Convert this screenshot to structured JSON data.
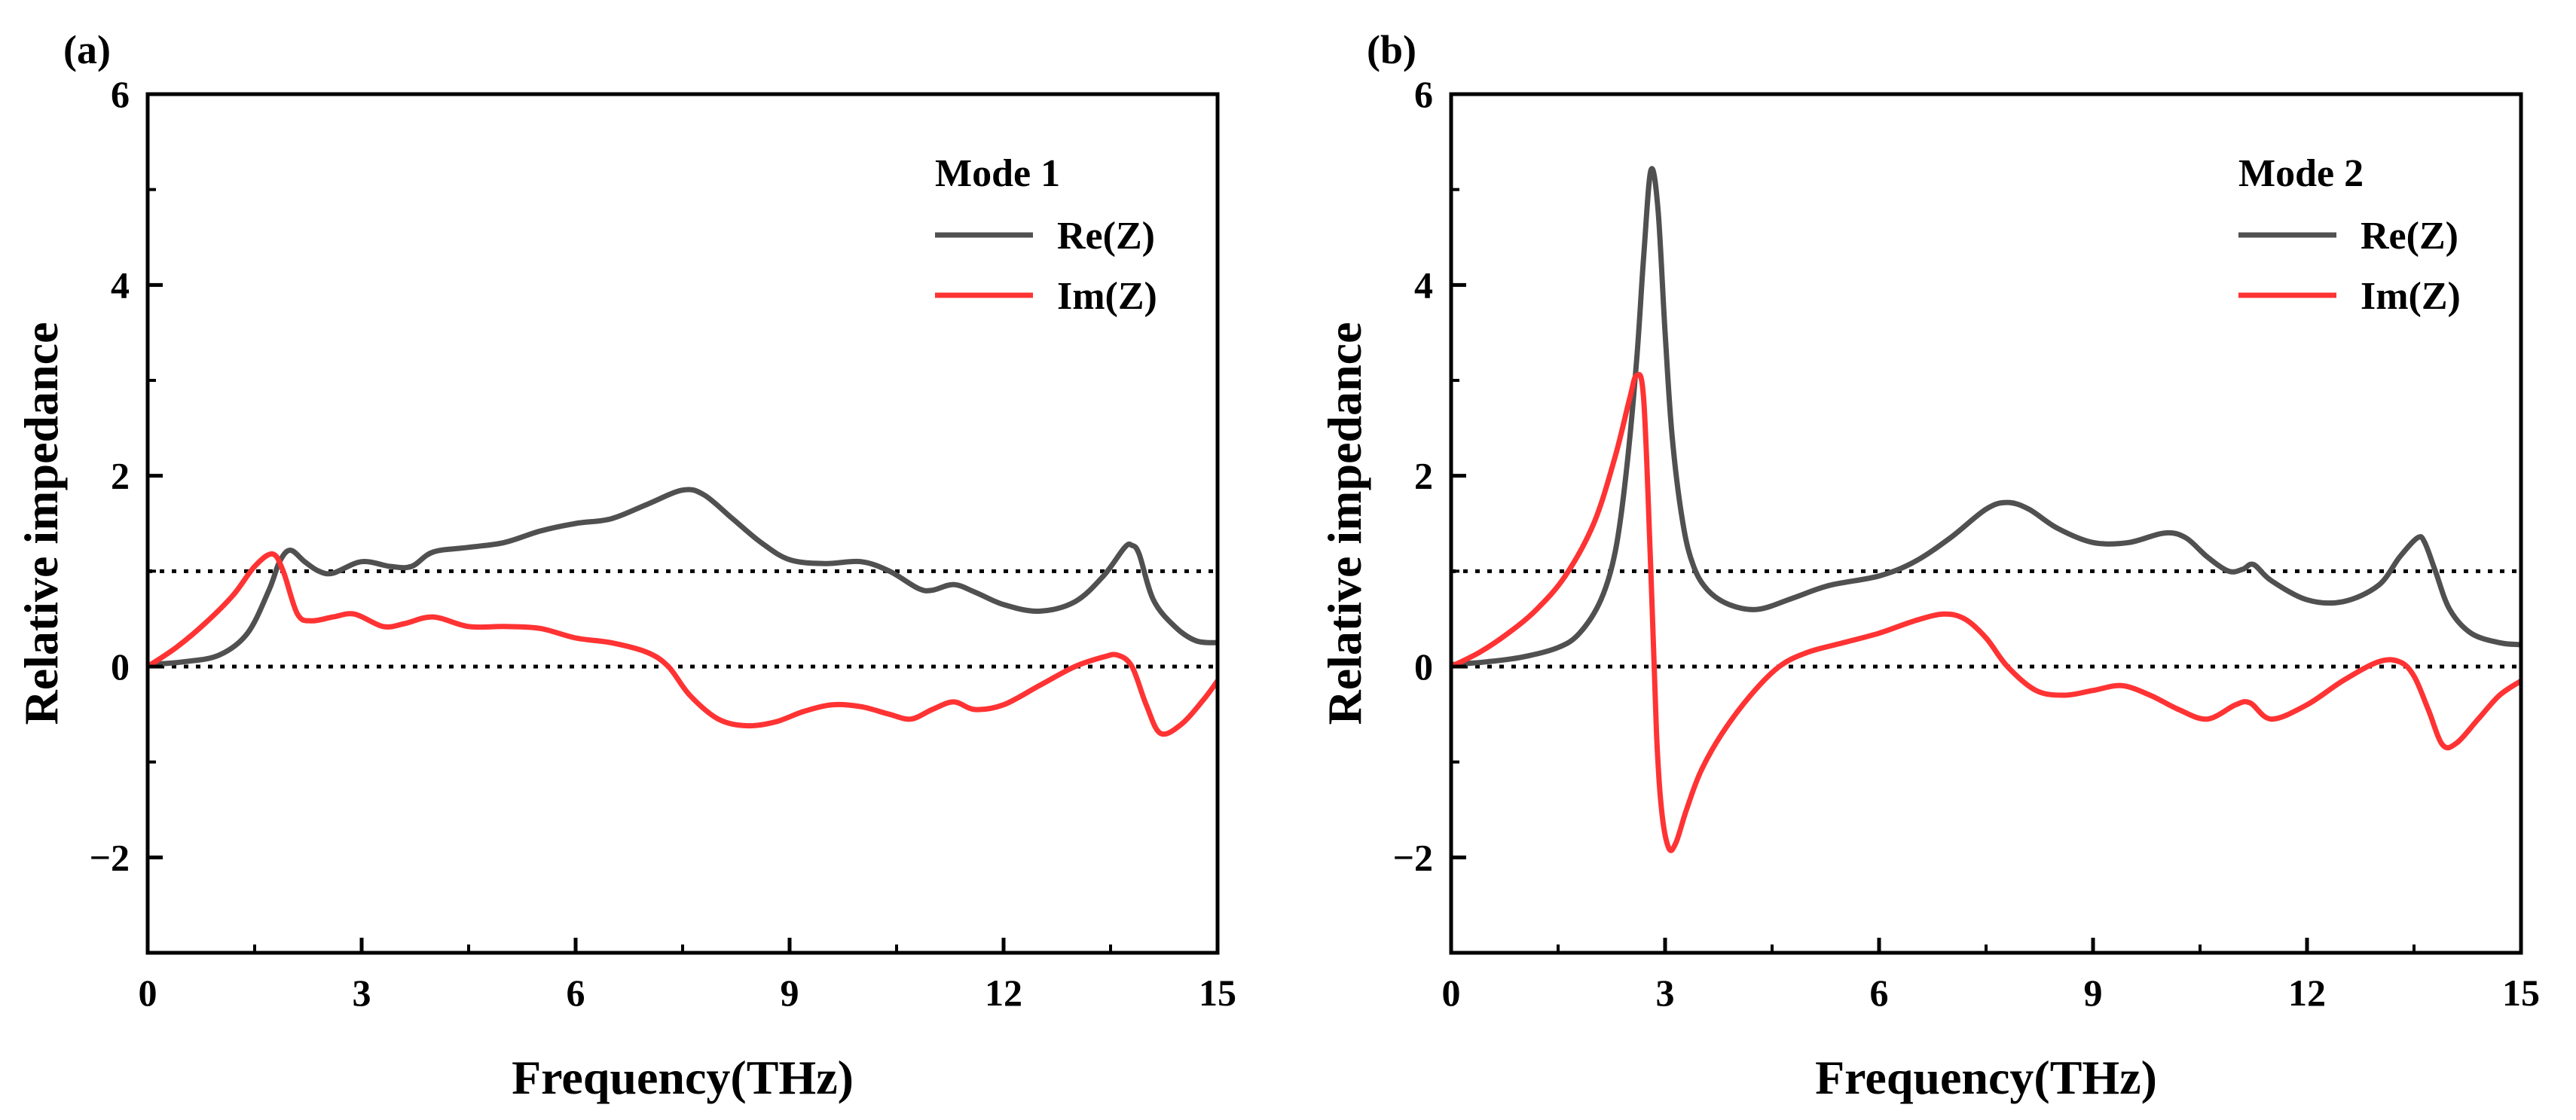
{
  "chart_data": [
    {
      "type": "line",
      "panel_label": "(a)",
      "xlabel": "Frequency(THz)",
      "ylabel": "Relative impedance",
      "xlim": [
        0,
        15
      ],
      "ylim": [
        -3,
        6
      ],
      "xticks": [
        0,
        3,
        6,
        9,
        12,
        15
      ],
      "xtick_labels": [
        "0",
        "3",
        "6",
        "9",
        "12",
        "15"
      ],
      "yticks": [
        -2,
        0,
        2,
        4,
        6
      ],
      "ytick_labels": [
        "−2",
        "0",
        "2",
        "4",
        "6"
      ],
      "reference_lines": [
        0,
        1
      ],
      "legend": {
        "title": "Mode 1",
        "position": "top-right",
        "entries": [
          "Re(Z)",
          "Im(Z)"
        ]
      },
      "series": [
        {
          "name": "Re(Z)",
          "color": "#505050",
          "x": [
            0,
            0.5,
            1.0,
            1.4,
            1.7,
            1.85,
            2.0,
            2.2,
            2.4,
            2.6,
            3.0,
            3.4,
            3.7,
            4.0,
            4.5,
            5.0,
            5.5,
            6.0,
            6.5,
            7.0,
            7.5,
            7.8,
            8.2,
            8.6,
            9.0,
            9.5,
            10.0,
            10.4,
            10.8,
            11.0,
            11.3,
            11.6,
            12.0,
            12.5,
            13.0,
            13.4,
            13.7,
            13.8,
            13.9,
            14.1,
            14.4,
            14.7,
            15.0
          ],
          "y": [
            0.02,
            0.05,
            0.12,
            0.35,
            0.8,
            1.1,
            1.22,
            1.1,
            1.0,
            0.98,
            1.1,
            1.05,
            1.05,
            1.2,
            1.25,
            1.3,
            1.42,
            1.5,
            1.55,
            1.7,
            1.85,
            1.8,
            1.55,
            1.3,
            1.12,
            1.08,
            1.1,
            1.0,
            0.82,
            0.8,
            0.86,
            0.78,
            0.65,
            0.58,
            0.68,
            0.95,
            1.25,
            1.27,
            1.18,
            0.7,
            0.42,
            0.27,
            0.25
          ]
        },
        {
          "name": "Im(Z)",
          "color": "#ff3333",
          "x": [
            0,
            0.4,
            0.8,
            1.2,
            1.5,
            1.75,
            1.9,
            2.1,
            2.3,
            2.6,
            2.9,
            3.3,
            3.6,
            4.0,
            4.5,
            5.0,
            5.5,
            6.0,
            6.5,
            7.0,
            7.3,
            7.6,
            8.0,
            8.4,
            8.8,
            9.2,
            9.6,
            10.0,
            10.4,
            10.7,
            11.0,
            11.3,
            11.6,
            12.0,
            12.5,
            13.0,
            13.4,
            13.6,
            13.8,
            14.0,
            14.2,
            14.5,
            14.8,
            15.0
          ],
          "y": [
            0.0,
            0.2,
            0.45,
            0.75,
            1.05,
            1.18,
            1.0,
            0.55,
            0.48,
            0.52,
            0.55,
            0.42,
            0.45,
            0.52,
            0.42,
            0.42,
            0.4,
            0.3,
            0.25,
            0.15,
            0.0,
            -0.3,
            -0.55,
            -0.62,
            -0.58,
            -0.47,
            -0.4,
            -0.42,
            -0.5,
            -0.55,
            -0.45,
            -0.37,
            -0.45,
            -0.4,
            -0.2,
            0.0,
            0.1,
            0.12,
            0.0,
            -0.4,
            -0.7,
            -0.6,
            -0.35,
            -0.15
          ]
        }
      ]
    },
    {
      "type": "line",
      "panel_label": "(b)",
      "xlabel": "Frequency(THz)",
      "ylabel": "Relative impedance",
      "xlim": [
        0,
        15
      ],
      "ylim": [
        -3,
        6
      ],
      "xticks": [
        0,
        3,
        6,
        9,
        12,
        15
      ],
      "xtick_labels": [
        "0",
        "3",
        "6",
        "9",
        "12",
        "15"
      ],
      "yticks": [
        -2,
        0,
        2,
        4,
        6
      ],
      "ytick_labels": [
        "−2",
        "0",
        "2",
        "4",
        "6"
      ],
      "reference_lines": [
        0,
        1
      ],
      "legend": {
        "title": "Mode 2",
        "position": "top-right",
        "entries": [
          "Re(Z)",
          "Im(Z)"
        ]
      },
      "series": [
        {
          "name": "Re(Z)",
          "color": "#505050",
          "x": [
            0,
            0.5,
            1.0,
            1.5,
            1.8,
            2.1,
            2.3,
            2.45,
            2.6,
            2.7,
            2.8,
            2.9,
            3.0,
            3.1,
            3.25,
            3.4,
            3.6,
            3.9,
            4.3,
            4.8,
            5.3,
            6.0,
            6.5,
            7.0,
            7.5,
            7.8,
            8.1,
            8.5,
            9.0,
            9.5,
            10.0,
            10.3,
            10.6,
            10.9,
            11.1,
            11.25,
            11.5,
            12.0,
            12.5,
            13.0,
            13.3,
            13.55,
            13.65,
            13.8,
            14.0,
            14.3,
            14.7,
            15.0
          ],
          "y": [
            0.02,
            0.05,
            0.1,
            0.2,
            0.35,
            0.7,
            1.2,
            2.0,
            3.2,
            4.3,
            5.2,
            4.8,
            3.5,
            2.4,
            1.5,
            1.05,
            0.8,
            0.65,
            0.6,
            0.72,
            0.85,
            0.95,
            1.1,
            1.35,
            1.65,
            1.72,
            1.65,
            1.45,
            1.3,
            1.3,
            1.4,
            1.35,
            1.15,
            1.0,
            1.02,
            1.07,
            0.9,
            0.7,
            0.68,
            0.85,
            1.15,
            1.35,
            1.3,
            1.0,
            0.6,
            0.35,
            0.25,
            0.23
          ]
        },
        {
          "name": "Im(Z)",
          "color": "#ff3333",
          "x": [
            0,
            0.4,
            0.8,
            1.2,
            1.6,
            2.0,
            2.3,
            2.5,
            2.6,
            2.7,
            2.8,
            2.88,
            2.95,
            3.05,
            3.15,
            3.3,
            3.5,
            3.8,
            4.2,
            4.6,
            5.0,
            5.5,
            6.0,
            6.5,
            6.9,
            7.2,
            7.5,
            7.8,
            8.2,
            8.6,
            9.0,
            9.4,
            9.8,
            10.2,
            10.6,
            11.0,
            11.2,
            11.5,
            12.0,
            12.5,
            13.0,
            13.3,
            13.5,
            13.7,
            13.9,
            14.1,
            14.4,
            14.7,
            15.0
          ],
          "y": [
            0.0,
            0.15,
            0.35,
            0.6,
            0.95,
            1.5,
            2.2,
            2.8,
            3.05,
            2.8,
            1.0,
            -0.7,
            -1.5,
            -1.9,
            -1.85,
            -1.5,
            -1.1,
            -0.7,
            -0.3,
            0.0,
            0.15,
            0.25,
            0.35,
            0.48,
            0.55,
            0.5,
            0.3,
            0.0,
            -0.25,
            -0.3,
            -0.25,
            -0.2,
            -0.3,
            -0.45,
            -0.55,
            -0.4,
            -0.38,
            -0.55,
            -0.4,
            -0.15,
            0.05,
            0.05,
            -0.1,
            -0.45,
            -0.82,
            -0.8,
            -0.55,
            -0.3,
            -0.15
          ]
        }
      ]
    }
  ]
}
